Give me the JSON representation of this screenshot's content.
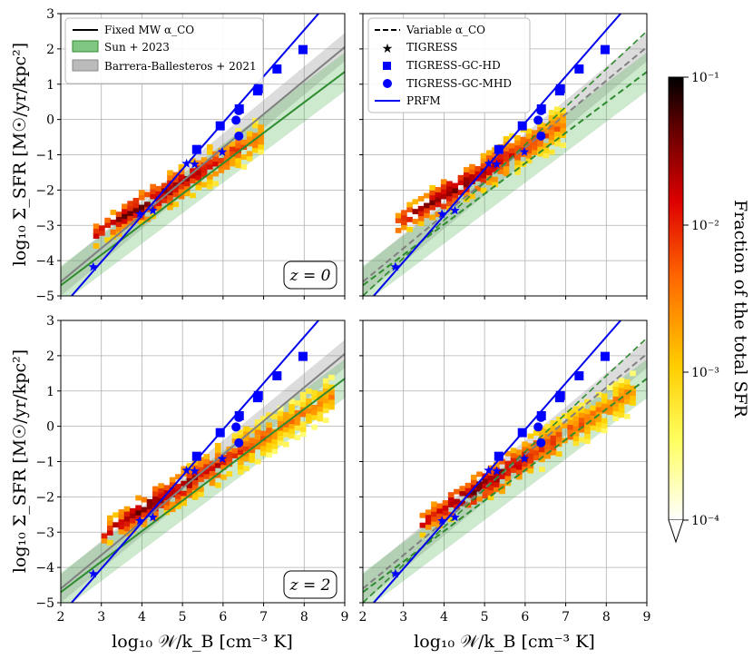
{
  "figure": {
    "xlabel": "log₁₀ 𝒲/k_B [cm⁻³ K]",
    "ylabel": "log₁₀ Σ_SFR [M☉/yr/kpc²]",
    "colorbar_label": "Fraction of the total SFR",
    "colorbar_ticks": [
      "10⁻¹",
      "10⁻²",
      "10⁻³",
      "10⁻⁴"
    ],
    "colorbar_range": [
      0.0001,
      0.1
    ],
    "colors": {
      "prfm": "#0000ee",
      "sun2023": "#2e8b2e",
      "barrera2021": "#808080",
      "markers": "#0000ff"
    }
  },
  "legend_left": {
    "items": [
      {
        "label": "Fixed MW α_CO",
        "style": "solid-black-line"
      },
      {
        "label": "Sun + 2023",
        "style": "green-band"
      },
      {
        "label": "Barrera-Ballesteros + 2021",
        "style": "grey-band"
      }
    ]
  },
  "legend_right": {
    "items": [
      {
        "label": "Variable α_CO",
        "style": "dashed-black-line"
      },
      {
        "label": "TIGRESS",
        "style": "star-marker"
      },
      {
        "label": "TIGRESS-GC-HD",
        "style": "square-marker"
      },
      {
        "label": "TIGRESS-GC-MHD",
        "style": "circle-marker"
      },
      {
        "label": "PRFM",
        "style": "blue-line"
      }
    ]
  },
  "panels": [
    {
      "id": "tl",
      "redshift_label": "z = 0",
      "alpha_co": "fixed MW",
      "show_z": true
    },
    {
      "id": "tr",
      "redshift_label": "",
      "alpha_co": "variable",
      "show_z": false
    },
    {
      "id": "bl",
      "redshift_label": "z = 2",
      "alpha_co": "fixed MW",
      "show_z": true
    },
    {
      "id": "br",
      "redshift_label": "",
      "alpha_co": "variable",
      "show_z": false
    }
  ],
  "chart_data": {
    "type": "scatter",
    "title": "",
    "xlabel": "log₁₀ 𝒲/k_B [cm⁻³ K]",
    "ylabel": "log₁₀ Σ_SFR [M☉/yr/kpc²]",
    "xlim": [
      2,
      9
    ],
    "ylim": [
      -5,
      3
    ],
    "xticks": [
      2,
      3,
      4,
      5,
      6,
      7,
      8,
      9
    ],
    "yticks": [
      -5,
      -4,
      -3,
      -2,
      -1,
      0,
      1,
      2,
      3
    ],
    "grid": true,
    "series": [
      {
        "name": "TIGRESS",
        "marker": "star",
        "x": [
          2.8,
          3.95,
          4.27,
          5.1,
          5.3,
          5.98
        ],
        "y": [
          -4.18,
          -2.68,
          -2.58,
          -1.25,
          -1.27,
          -0.92
        ]
      },
      {
        "name": "TIGRESS-GC-HD",
        "marker": "square",
        "x": [
          5.35,
          5.93,
          6.4,
          6.85,
          6.87,
          7.33,
          7.97
        ],
        "y": [
          -0.85,
          -0.18,
          0.3,
          0.81,
          0.87,
          1.43,
          1.98
        ]
      },
      {
        "name": "TIGRESS-GC-MHD",
        "marker": "circle",
        "x": [
          6.32,
          6.39,
          6.39
        ],
        "y": [
          -0.02,
          -0.47,
          0.25
        ]
      },
      {
        "name": "PRFM",
        "type": "line",
        "x": [
          2,
          9
        ],
        "y": [
          -5.35,
          3.85
        ]
      },
      {
        "name": "Sun + 2023",
        "type": "line+band",
        "x": [
          2,
          9
        ],
        "y": [
          -4.7,
          1.35
        ],
        "band_halfwidth": 0.55
      },
      {
        "name": "Barrera-Ballesteros + 2021",
        "type": "line+band",
        "x": [
          2,
          9
        ],
        "y": [
          -4.6,
          2.05
        ],
        "band_halfwidth": 0.4
      },
      {
        "name": "Variable α_CO (dashed, right panels)",
        "type": "line",
        "x": [
          2,
          9
        ],
        "y": [
          -5.0,
          2.5
        ]
      }
    ],
    "heatmap": [
      {
        "panel": "tl",
        "ridge": [
          [
            2.8,
            -3.3
          ],
          [
            8.5,
            0.6
          ]
        ],
        "top_x": 6.9,
        "top_y": 0.35
      },
      {
        "panel": "tr",
        "ridge": [
          [
            2.8,
            -3.0
          ],
          [
            7.0,
            -0.1
          ]
        ],
        "top_x": 6.9,
        "top_y": 0.35
      },
      {
        "panel": "bl",
        "ridge": [
          [
            3.0,
            -3.1
          ],
          [
            8.6,
            0.8
          ]
        ],
        "top_x": 8.6,
        "top_y": 1.5
      },
      {
        "panel": "br",
        "ridge": [
          [
            3.4,
            -2.8
          ],
          [
            8.7,
            1.0
          ]
        ],
        "top_x": 8.6,
        "top_y": 1.5
      }
    ]
  }
}
